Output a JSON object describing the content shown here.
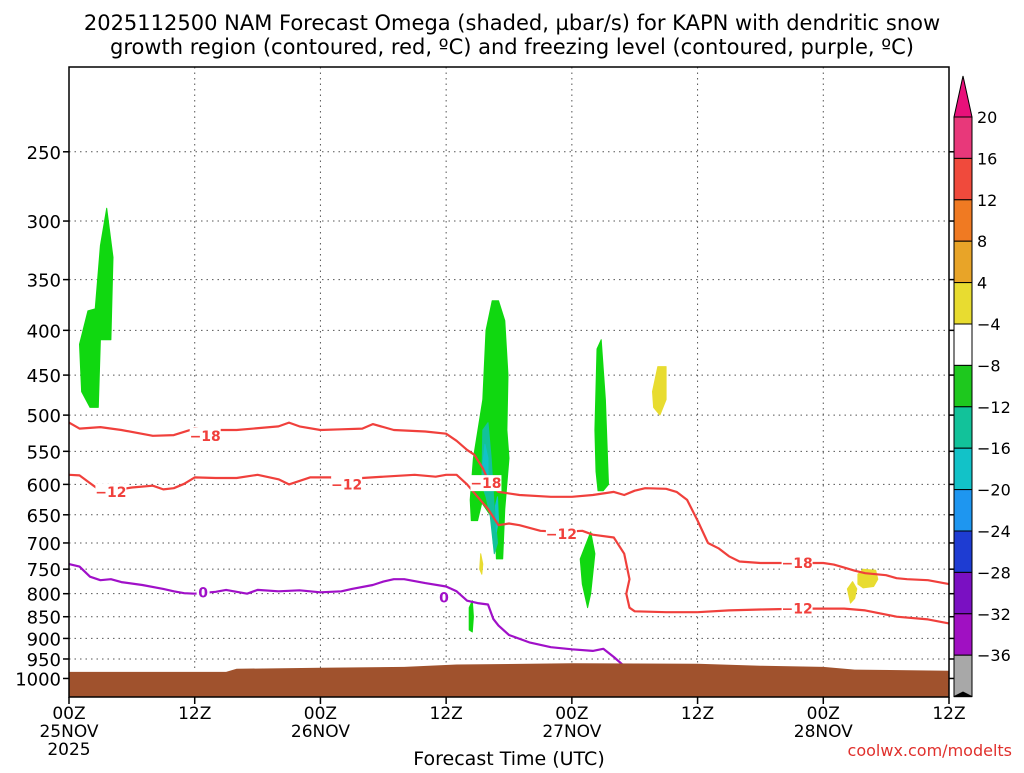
{
  "chart_data": {
    "type": "heatmap",
    "title_line1": "2025112500 NAM Forecast Omega (shaded, µbar/s) for KAPN with dendritic snow",
    "title_line2": "growth region (contoured, red, ºC) and freezing level (contoured, purple, ºC)",
    "xlabel": "Forecast Time (UTC)",
    "ylabel": "",
    "x_ticks": [
      {
        "hour": 0,
        "label": "00Z",
        "date": "25NOV",
        "year": "2025"
      },
      {
        "hour": 12,
        "label": "12Z",
        "date": "",
        "year": ""
      },
      {
        "hour": 24,
        "label": "00Z",
        "date": "26NOV",
        "year": ""
      },
      {
        "hour": 36,
        "label": "12Z",
        "date": "",
        "year": ""
      },
      {
        "hour": 48,
        "label": "00Z",
        "date": "27NOV",
        "year": ""
      },
      {
        "hour": 60,
        "label": "12Z",
        "date": "",
        "year": ""
      },
      {
        "hour": 72,
        "label": "00Z",
        "date": "28NOV",
        "year": ""
      },
      {
        "hour": 84,
        "label": "12Z",
        "date": "",
        "year": ""
      }
    ],
    "xlim": [
      0,
      84
    ],
    "y_ticks": [
      250,
      300,
      350,
      400,
      450,
      500,
      550,
      600,
      650,
      700,
      750,
      800,
      850,
      900,
      950,
      1000
    ],
    "ylim": [
      1050,
      200
    ],
    "y_scale": "log",
    "grid": true,
    "colorbar": {
      "levels": [
        "20",
        "16",
        "12",
        "8",
        "4",
        "−4",
        "−8",
        "−12",
        "−16",
        "−20",
        "−24",
        "−28",
        "−32",
        "−36"
      ],
      "bands": [
        "#e8387a",
        "#f04a3c",
        "#f07a22",
        "#e8a428",
        "#e8dc30",
        "#ffffff",
        "#1ec81e",
        "#12c29a",
        "#12c2c8",
        "#1e96f0",
        "#1e3cd2",
        "#7a10c2",
        "#a010c2",
        "#a8a8a8"
      ],
      "top_arrow_color": "#e8107a",
      "bottom_arrow_color": "#000000"
    },
    "omega_regions": [
      {
        "color": "#10d810",
        "points": [
          [
            1.0,
            415
          ],
          [
            1.8,
            380
          ],
          [
            2.5,
            378
          ],
          [
            3.0,
            320
          ],
          [
            3.6,
            290
          ],
          [
            4.2,
            330
          ],
          [
            4.0,
            410
          ],
          [
            3.0,
            410
          ],
          [
            2.8,
            490
          ],
          [
            2.0,
            490
          ],
          [
            1.2,
            470
          ]
        ]
      },
      {
        "color": "#10d810",
        "points": [
          [
            38.3,
            625
          ],
          [
            38.6,
            560
          ],
          [
            39.5,
            480
          ],
          [
            39.8,
            400
          ],
          [
            40.4,
            370
          ],
          [
            41.0,
            370
          ],
          [
            41.6,
            390
          ],
          [
            41.9,
            450
          ],
          [
            41.8,
            520
          ],
          [
            42.0,
            560
          ],
          [
            41.6,
            640
          ],
          [
            41.4,
            730
          ],
          [
            40.8,
            730
          ],
          [
            40.7,
            680
          ],
          [
            40.2,
            650
          ],
          [
            39.4,
            630
          ],
          [
            39.0,
            660
          ],
          [
            38.4,
            660
          ]
        ]
      },
      {
        "color": "#12c29a",
        "points": [
          [
            39.4,
            600
          ],
          [
            39.5,
            520
          ],
          [
            40.0,
            510
          ],
          [
            40.3,
            560
          ],
          [
            40.6,
            640
          ],
          [
            40.9,
            700
          ],
          [
            40.6,
            720
          ],
          [
            40.2,
            650
          ],
          [
            39.8,
            620
          ]
        ]
      },
      {
        "color": "#12c2c8",
        "points": [
          [
            39.5,
            570
          ],
          [
            39.7,
            540
          ],
          [
            40.0,
            560
          ],
          [
            40.0,
            600
          ]
        ]
      },
      {
        "color": "#12c2c8",
        "points": [
          [
            40.7,
            635
          ],
          [
            40.9,
            620
          ],
          [
            41.0,
            660
          ],
          [
            40.8,
            680
          ]
        ]
      },
      {
        "color": "#10d810",
        "points": [
          [
            50.2,
            520
          ],
          [
            50.4,
            420
          ],
          [
            50.8,
            410
          ],
          [
            51.2,
            480
          ],
          [
            51.5,
            600
          ],
          [
            51.0,
            610
          ],
          [
            50.5,
            610
          ],
          [
            50.3,
            580
          ]
        ]
      },
      {
        "color": "#10d810",
        "points": [
          [
            48.8,
            730
          ],
          [
            49.8,
            680
          ],
          [
            50.2,
            720
          ],
          [
            49.8,
            800
          ],
          [
            49.5,
            830
          ],
          [
            49.0,
            780
          ]
        ]
      },
      {
        "color": "#10d810",
        "points": [
          [
            38.2,
            830
          ],
          [
            38.5,
            815
          ],
          [
            38.6,
            850
          ],
          [
            38.5,
            885
          ],
          [
            38.2,
            880
          ]
        ]
      },
      {
        "color": "#e8dc30",
        "points": [
          [
            39.3,
            720
          ],
          [
            39.5,
            740
          ],
          [
            39.4,
            760
          ],
          [
            39.2,
            750
          ]
        ]
      },
      {
        "color": "#e8dc30",
        "points": [
          [
            55.7,
            470
          ],
          [
            56.2,
            440
          ],
          [
            57.0,
            440
          ],
          [
            57.0,
            480
          ],
          [
            56.4,
            500
          ],
          [
            55.8,
            490
          ]
        ]
      },
      {
        "color": "#e8dc30",
        "points": [
          [
            74.3,
            790
          ],
          [
            74.8,
            775
          ],
          [
            75.2,
            790
          ],
          [
            75.0,
            810
          ],
          [
            74.6,
            820
          ]
        ]
      },
      {
        "color": "#e8dc30",
        "points": [
          [
            75.3,
            760
          ],
          [
            75.8,
            750
          ],
          [
            77.0,
            752
          ],
          [
            77.2,
            770
          ],
          [
            76.8,
            785
          ],
          [
            75.8,
            788
          ],
          [
            75.3,
            780
          ]
        ]
      }
    ],
    "contours": [
      {
        "color": "#f0403c",
        "label": "−18",
        "label_at": [
          13,
          528
        ],
        "points": [
          [
            0,
            510
          ],
          [
            1,
            518
          ],
          [
            3,
            516
          ],
          [
            5,
            520
          ],
          [
            8,
            528
          ],
          [
            10,
            527
          ],
          [
            12,
            518
          ],
          [
            13,
            520
          ],
          [
            16,
            520
          ],
          [
            20,
            515
          ],
          [
            21,
            510
          ],
          [
            22,
            515
          ],
          [
            24,
            520
          ],
          [
            26,
            519
          ],
          [
            28,
            518
          ],
          [
            29,
            512
          ],
          [
            31,
            520
          ],
          [
            34,
            522
          ],
          [
            36,
            525
          ],
          [
            37,
            535
          ],
          [
            38,
            548
          ],
          [
            38.7,
            555
          ],
          [
            39.5,
            575
          ],
          [
            40.2,
            600
          ],
          [
            41,
            612
          ],
          [
            43,
            617
          ],
          [
            46,
            620
          ],
          [
            48,
            620
          ],
          [
            50,
            617
          ],
          [
            52,
            612
          ],
          [
            53,
            617
          ],
          [
            54,
            610
          ],
          [
            55,
            606
          ],
          [
            57,
            607
          ],
          [
            58,
            612
          ],
          [
            59,
            625
          ],
          [
            60,
            660
          ],
          [
            61,
            700
          ],
          [
            62,
            710
          ],
          [
            63,
            725
          ],
          [
            64,
            735
          ],
          [
            66,
            738
          ],
          [
            70,
            738
          ],
          [
            72,
            738
          ],
          [
            73,
            741
          ],
          [
            74,
            747
          ],
          [
            75,
            753
          ],
          [
            76,
            758
          ],
          [
            78,
            762
          ],
          [
            79,
            768
          ],
          [
            80,
            770
          ],
          [
            82,
            772
          ],
          [
            84,
            780
          ]
        ]
      },
      {
        "color": "#f0403c",
        "label": "−12",
        "label_at": [
          4,
          612
        ],
        "points": [
          [
            0,
            585
          ],
          [
            1,
            586
          ],
          [
            2,
            598
          ],
          [
            3,
            610
          ],
          [
            4,
            610
          ],
          [
            6,
            605
          ],
          [
            8,
            602
          ],
          [
            9,
            608
          ],
          [
            10,
            606
          ],
          [
            11,
            599
          ],
          [
            12,
            589
          ],
          [
            14,
            590
          ],
          [
            16,
            590
          ],
          [
            18,
            585
          ],
          [
            20,
            592
          ],
          [
            21,
            600
          ],
          [
            23,
            589
          ],
          [
            25,
            589
          ],
          [
            26,
            598
          ],
          [
            28,
            590
          ],
          [
            30,
            588
          ],
          [
            33,
            585
          ],
          [
            35,
            588
          ],
          [
            36,
            585
          ],
          [
            37,
            585
          ],
          [
            38,
            600
          ],
          [
            39,
            620
          ],
          [
            40,
            640
          ],
          [
            41,
            668
          ],
          [
            42,
            665
          ],
          [
            43,
            668
          ],
          [
            45,
            678
          ],
          [
            47,
            680
          ],
          [
            49,
            678
          ],
          [
            50,
            685
          ],
          [
            52,
            690
          ],
          [
            53,
            720
          ],
          [
            53.5,
            770
          ],
          [
            53.2,
            800
          ],
          [
            53.5,
            830
          ],
          [
            54,
            838
          ],
          [
            57,
            840
          ],
          [
            60,
            840
          ],
          [
            63,
            836
          ],
          [
            66,
            834
          ],
          [
            70,
            832
          ],
          [
            74,
            832
          ],
          [
            76,
            836
          ],
          [
            79,
            850
          ],
          [
            82,
            856
          ],
          [
            84,
            865
          ]
        ]
      },
      {
        "color": "#a010c8",
        "label": "0",
        "label_at": [
          12.8,
          798
        ],
        "points": [
          [
            0,
            740
          ],
          [
            1,
            745
          ],
          [
            2,
            765
          ],
          [
            3,
            772
          ],
          [
            4,
            770
          ],
          [
            5,
            776
          ],
          [
            7,
            782
          ],
          [
            9,
            790
          ],
          [
            10,
            795
          ],
          [
            11,
            799
          ],
          [
            12,
            800
          ],
          [
            14,
            796
          ],
          [
            15,
            792
          ],
          [
            17,
            800
          ],
          [
            18,
            792
          ],
          [
            20,
            795
          ],
          [
            22,
            793
          ],
          [
            24,
            797
          ],
          [
            26,
            795
          ],
          [
            27,
            790
          ],
          [
            29,
            782
          ],
          [
            30,
            775
          ],
          [
            31,
            770
          ],
          [
            32,
            770
          ],
          [
            34,
            778
          ],
          [
            36,
            785
          ],
          [
            37,
            795
          ],
          [
            38,
            815
          ],
          [
            39,
            820
          ],
          [
            40,
            823
          ],
          [
            40.5,
            855
          ],
          [
            41,
            870
          ],
          [
            42,
            892
          ],
          [
            44,
            910
          ],
          [
            46,
            921
          ],
          [
            48,
            926
          ],
          [
            50,
            930
          ],
          [
            51,
            925
          ],
          [
            52,
            945
          ],
          [
            53,
            968
          ]
        ]
      }
    ],
    "contour_labels": [
      {
        "text": "−18",
        "at": [
          39.8,
          598
        ]
      },
      {
        "text": "−18",
        "at": [
          69.5,
          738
        ]
      },
      {
        "text": "−12",
        "at": [
          26.5,
          600
        ]
      },
      {
        "text": "−12",
        "at": [
          47,
          684
        ]
      },
      {
        "text": "−12",
        "at": [
          69.5,
          832
        ]
      },
      {
        "text": "0",
        "at": [
          35.8,
          808
        ]
      }
    ],
    "terrain": {
      "color": "#a0522d",
      "points": [
        [
          0,
          983
        ],
        [
          15,
          983
        ],
        [
          16,
          975
        ],
        [
          24,
          972
        ],
        [
          32,
          970
        ],
        [
          37,
          964
        ],
        [
          48,
          961
        ],
        [
          60,
          962
        ],
        [
          66,
          967
        ],
        [
          72,
          970
        ],
        [
          75,
          977
        ],
        [
          84,
          980
        ]
      ]
    }
  },
  "credit": "coolwx.com/modelts"
}
